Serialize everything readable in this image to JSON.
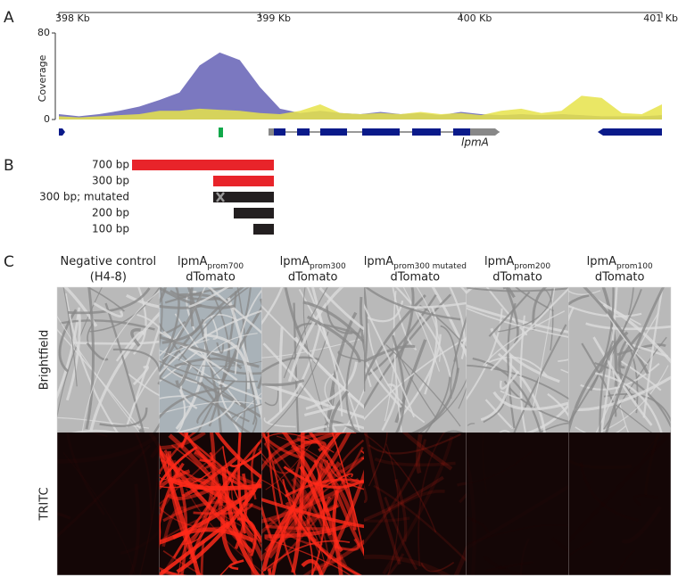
{
  "panel_a": {
    "label": "A",
    "xlim": [
      398,
      401
    ],
    "xticks": [
      {
        "value": 398,
        "label": "398 Kb"
      },
      {
        "value": 399,
        "label": "399 Kb"
      },
      {
        "value": 400,
        "label": "400 Kb"
      },
      {
        "value": 401,
        "label": "401 Kb"
      }
    ],
    "y_label": "Coverage",
    "ylim": [
      0,
      80
    ],
    "yticks": [
      0,
      80
    ],
    "x": [
      398.0,
      398.1,
      398.2,
      398.3,
      398.4,
      398.5,
      398.6,
      398.7,
      398.8,
      398.9,
      399.0,
      399.1,
      399.2,
      399.3,
      399.4,
      399.5,
      399.6,
      399.7,
      399.8,
      399.9,
      400.0,
      400.1,
      400.2,
      400.3,
      400.4,
      400.5,
      400.6,
      400.7,
      400.8,
      400.9,
      401.0
    ],
    "series": [
      {
        "color": "#7b78c0",
        "values": [
          5,
          3,
          5,
          8,
          12,
          18,
          25,
          50,
          62,
          55,
          30,
          10,
          6,
          8,
          6,
          5,
          7,
          5,
          6,
          4,
          7,
          5,
          4,
          5,
          4,
          5,
          4,
          3,
          3,
          3,
          4
        ]
      },
      {
        "color": "#e6e34a",
        "values": [
          3,
          2,
          3,
          4,
          5,
          8,
          8,
          10,
          9,
          8,
          6,
          5,
          8,
          14,
          6,
          5,
          6,
          5,
          7,
          5,
          6,
          4,
          8,
          10,
          6,
          8,
          22,
          20,
          6,
          5,
          14
        ]
      }
    ],
    "gene_label": "lpmA"
  },
  "panel_b": {
    "label": "B",
    "constructs": [
      "700 bp",
      "300 bp",
      "300 bp; mutated",
      "200 bp",
      "100 bp"
    ]
  },
  "panel_c": {
    "label": "C",
    "columns": [
      {
        "name": "Negative control",
        "line2": "(H4-8)"
      },
      {
        "name": "lpmA",
        "sub": "prom700",
        "line2": "dTomato"
      },
      {
        "name": "lpmA",
        "sub": "prom300",
        "line2": "dTomato"
      },
      {
        "name": "lpmA",
        "sub": "prom300 mutated",
        "line2": "dTomato"
      },
      {
        "name": "lpmA",
        "sub": "prom200",
        "line2": "dTomato"
      },
      {
        "name": "lpmA",
        "sub": "prom100",
        "line2": "dTomato"
      }
    ],
    "rows": [
      "Brightfield",
      "TRITC"
    ]
  }
}
